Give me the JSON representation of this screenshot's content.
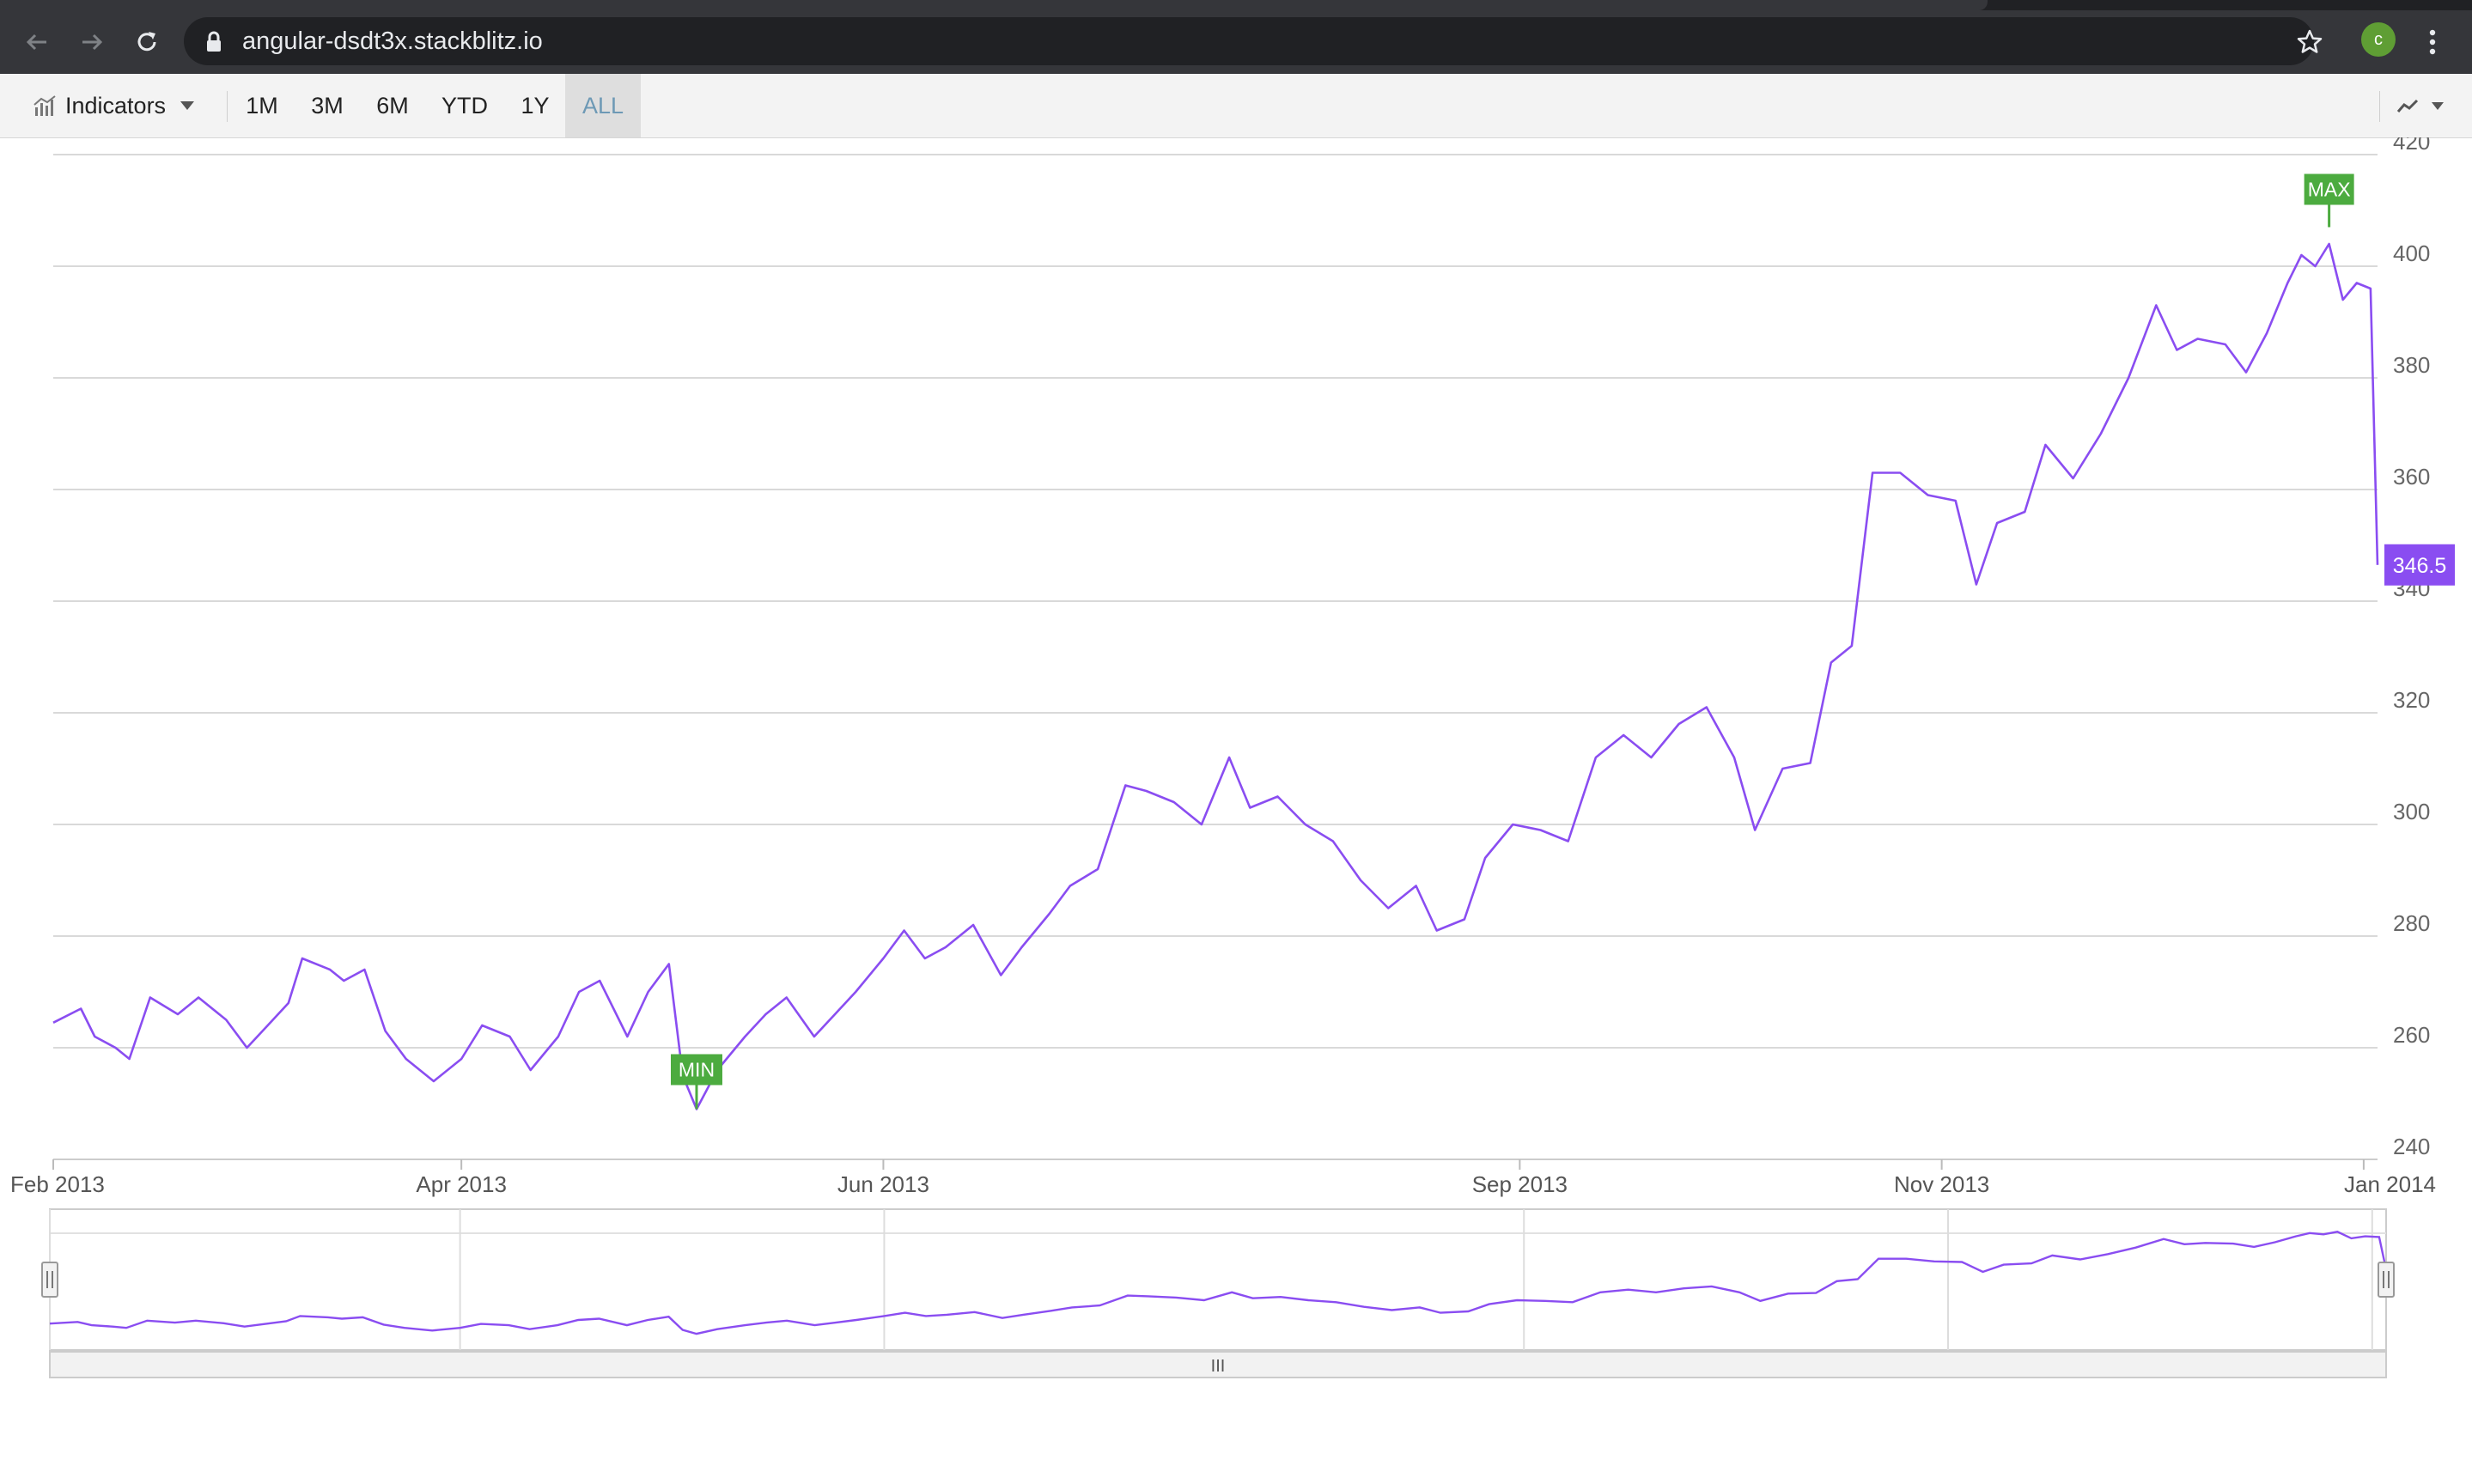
{
  "browser": {
    "url": "angular-dsdt3x.stackblitz.io",
    "profile_initial": "c",
    "icons": [
      "back-arrow-icon",
      "forward-arrow-icon",
      "reload-icon",
      "lock-icon",
      "star-icon",
      "kebab-menu-icon"
    ]
  },
  "toolbar": {
    "indicators_label": "Indicators",
    "periods": [
      "1M",
      "3M",
      "6M",
      "YTD",
      "1Y",
      "ALL"
    ],
    "active_period": "ALL",
    "chart_type_icon": "line-chart-icon"
  },
  "chart_data": {
    "type": "line",
    "title": "",
    "xlabel": "",
    "ylabel": "",
    "x_range": [
      "2013-02-01",
      "2014-01-03"
    ],
    "ylim": [
      240,
      420
    ],
    "y_ticks": [
      240,
      260,
      280,
      300,
      320,
      340,
      360,
      380,
      400,
      420
    ],
    "x_ticks": [
      "Feb 2013",
      "Apr 2013",
      "Jun 2013",
      "Sep 2013",
      "Nov 2013",
      "Jan 2014"
    ],
    "grid": true,
    "axis_position": "right",
    "series": [
      {
        "color": "#8a4df1",
        "points": [
          [
            "2013-02-01",
            264.5
          ],
          [
            "2013-02-05",
            267
          ],
          [
            "2013-02-07",
            262
          ],
          [
            "2013-02-10",
            260
          ],
          [
            "2013-02-12",
            258
          ],
          [
            "2013-02-15",
            269
          ],
          [
            "2013-02-19",
            266
          ],
          [
            "2013-02-22",
            269
          ],
          [
            "2013-02-26",
            265
          ],
          [
            "2013-03-01",
            260
          ],
          [
            "2013-03-04",
            264
          ],
          [
            "2013-03-07",
            268
          ],
          [
            "2013-03-09",
            276
          ],
          [
            "2013-03-13",
            274
          ],
          [
            "2013-03-15",
            272
          ],
          [
            "2013-03-18",
            274
          ],
          [
            "2013-03-21",
            263
          ],
          [
            "2013-03-24",
            258
          ],
          [
            "2013-03-28",
            254
          ],
          [
            "2013-04-01",
            258
          ],
          [
            "2013-04-04",
            264
          ],
          [
            "2013-04-08",
            262
          ],
          [
            "2013-04-11",
            256
          ],
          [
            "2013-04-15",
            262
          ],
          [
            "2013-04-18",
            270
          ],
          [
            "2013-04-21",
            272
          ],
          [
            "2013-04-25",
            262
          ],
          [
            "2013-04-28",
            270
          ],
          [
            "2013-05-01",
            275
          ],
          [
            "2013-05-03",
            255
          ],
          [
            "2013-05-05",
            249
          ],
          [
            "2013-05-08",
            256
          ],
          [
            "2013-05-12",
            262
          ],
          [
            "2013-05-15",
            266
          ],
          [
            "2013-05-18",
            269
          ],
          [
            "2013-05-22",
            262
          ],
          [
            "2013-05-25",
            266
          ],
          [
            "2013-05-28",
            270
          ],
          [
            "2013-06-01",
            276
          ],
          [
            "2013-06-04",
            281
          ],
          [
            "2013-06-07",
            276
          ],
          [
            "2013-06-10",
            278
          ],
          [
            "2013-06-14",
            282
          ],
          [
            "2013-06-18",
            273
          ],
          [
            "2013-06-21",
            278
          ],
          [
            "2013-06-25",
            284
          ],
          [
            "2013-06-28",
            289
          ],
          [
            "2013-07-02",
            292
          ],
          [
            "2013-07-06",
            307
          ],
          [
            "2013-07-09",
            306
          ],
          [
            "2013-07-13",
            304
          ],
          [
            "2013-07-17",
            300
          ],
          [
            "2013-07-21",
            312
          ],
          [
            "2013-07-24",
            303
          ],
          [
            "2013-07-28",
            305
          ],
          [
            "2013-08-01",
            300
          ],
          [
            "2013-08-05",
            297
          ],
          [
            "2013-08-09",
            290
          ],
          [
            "2013-08-13",
            285
          ],
          [
            "2013-08-17",
            289
          ],
          [
            "2013-08-20",
            281
          ],
          [
            "2013-08-24",
            283
          ],
          [
            "2013-08-27",
            294
          ],
          [
            "2013-08-31",
            300
          ],
          [
            "2013-09-04",
            299
          ],
          [
            "2013-09-08",
            297
          ],
          [
            "2013-09-12",
            312
          ],
          [
            "2013-09-16",
            316
          ],
          [
            "2013-09-20",
            312
          ],
          [
            "2013-09-24",
            318
          ],
          [
            "2013-09-28",
            321
          ],
          [
            "2013-10-02",
            312
          ],
          [
            "2013-10-05",
            299
          ],
          [
            "2013-10-09",
            310
          ],
          [
            "2013-10-13",
            311
          ],
          [
            "2013-10-16",
            329
          ],
          [
            "2013-10-19",
            332
          ],
          [
            "2013-10-22",
            363
          ],
          [
            "2013-10-26",
            363
          ],
          [
            "2013-10-30",
            359
          ],
          [
            "2013-11-03",
            358
          ],
          [
            "2013-11-06",
            343
          ],
          [
            "2013-11-09",
            354
          ],
          [
            "2013-11-13",
            356
          ],
          [
            "2013-11-16",
            368
          ],
          [
            "2013-11-20",
            362
          ],
          [
            "2013-11-24",
            370
          ],
          [
            "2013-11-28",
            380
          ],
          [
            "2013-12-02",
            393
          ],
          [
            "2013-12-05",
            385
          ],
          [
            "2013-12-08",
            387
          ],
          [
            "2013-12-12",
            386
          ],
          [
            "2013-12-15",
            381
          ],
          [
            "2013-12-18",
            388
          ],
          [
            "2013-12-21",
            397
          ],
          [
            "2013-12-23",
            402
          ],
          [
            "2013-12-25",
            400
          ],
          [
            "2013-12-27",
            404
          ],
          [
            "2013-12-29",
            394
          ],
          [
            "2013-12-31",
            397
          ],
          [
            "2014-01-02",
            396
          ],
          [
            "2014-01-03",
            346.5
          ]
        ]
      }
    ],
    "annotations": [
      {
        "label": "MIN",
        "x": "2013-05-05",
        "value": 249,
        "color": "#4cab3f"
      },
      {
        "label": "MAX",
        "x": "2013-12-27",
        "value": 407,
        "color": "#4cab3f"
      }
    ],
    "last_value_label": "346.5",
    "last_value_color": "#8a4df1",
    "navigator": {
      "grip_icon": "grip-handle-icon",
      "scrollbar_grip": "III"
    }
  }
}
